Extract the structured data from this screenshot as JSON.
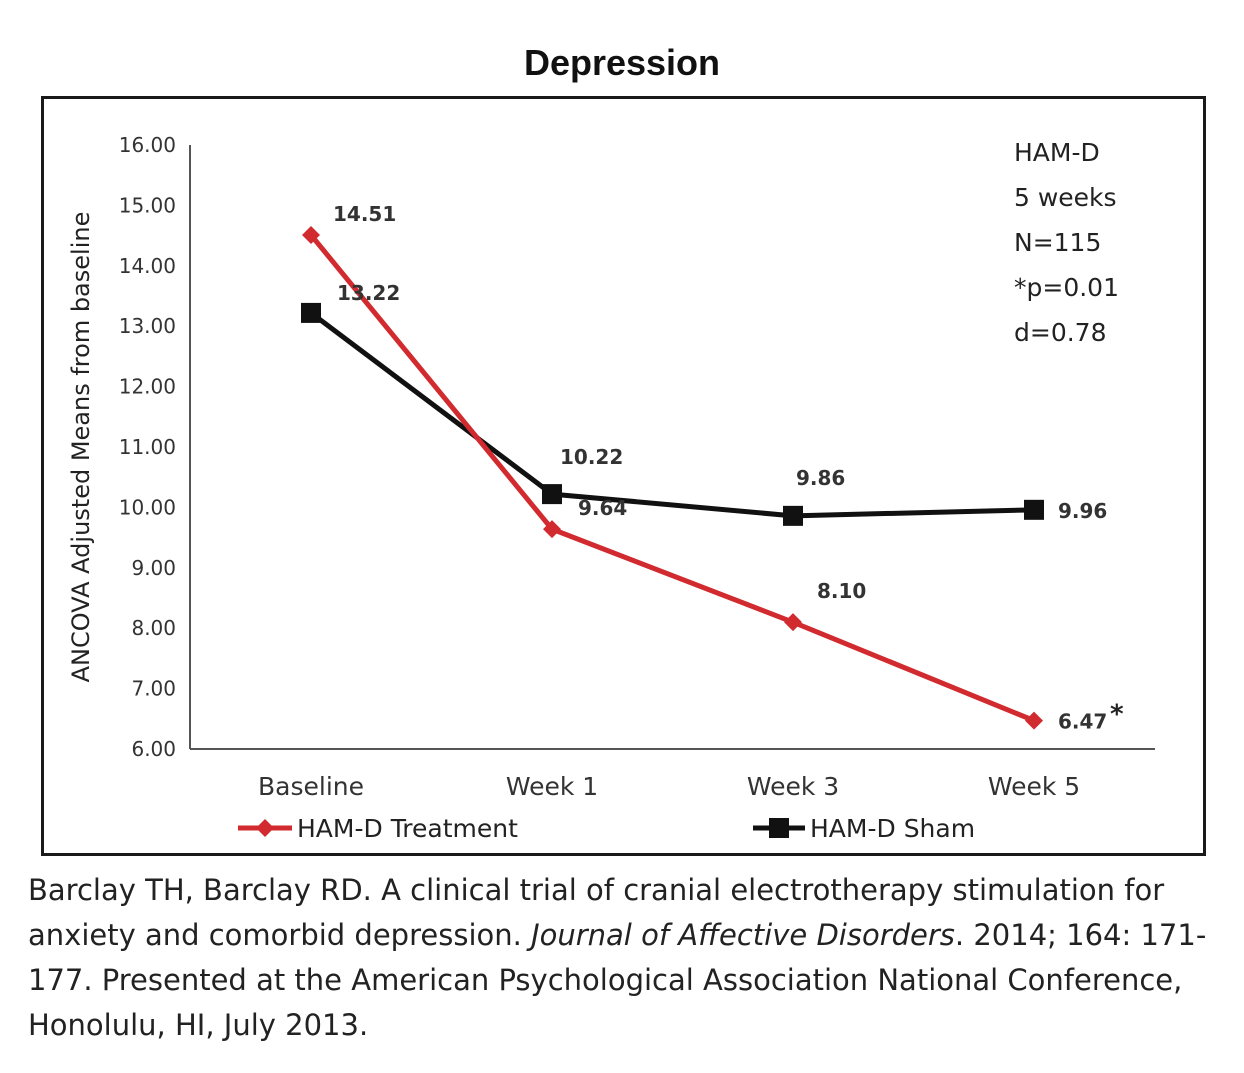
{
  "chart_data": {
    "type": "line",
    "title": "Depression",
    "ylabel": "ANCOVA Adjusted Means from baseline",
    "xlabel": "",
    "ylim": [
      6,
      16
    ],
    "y_ticks": [
      "6.00",
      "7.00",
      "8.00",
      "9.00",
      "10.00",
      "11.00",
      "12.00",
      "13.00",
      "14.00",
      "15.00",
      "16.00"
    ],
    "categories": [
      "Baseline",
      "Week 1",
      "Week 3",
      "Week 5"
    ],
    "series": [
      {
        "name": "HAM-D Treatment",
        "color": "#d12a2f",
        "marker": "diamond",
        "values": [
          14.51,
          9.64,
          8.1,
          6.47
        ],
        "labels": [
          "14.51",
          "9.64",
          "8.10",
          "6.47"
        ]
      },
      {
        "name": "HAM-D Sham",
        "color": "#111111",
        "marker": "square",
        "values": [
          13.22,
          10.22,
          9.86,
          9.96
        ],
        "labels": [
          "13.22",
          "10.22",
          "9.86",
          "9.96"
        ]
      }
    ],
    "significance_marker": "*",
    "annotation_lines": [
      "HAM-D",
      "5 weeks",
      "N=115",
      "*p=0.01",
      "d=0.78"
    ],
    "grid": false,
    "legend_position": "bottom"
  },
  "caption": {
    "part1": "Barclay TH, Barclay RD. A clinical trial of cranial electrotherapy stimulation for anxiety and comorbid depression. ",
    "journal": "Journal of Affective Disorders",
    "part2": ". 2014; 164: 171-177. Presented at the American Psychological Association National Conference, Honolulu, HI, July 2013."
  }
}
